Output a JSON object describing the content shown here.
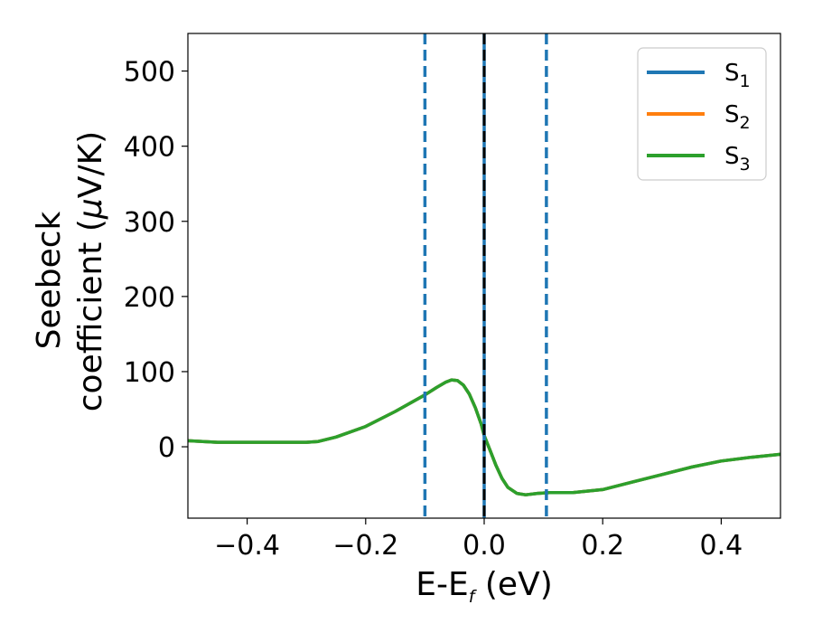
{
  "chart_data": {
    "type": "line",
    "title": "",
    "xlabel": {
      "main": "E-E",
      "sub": "f",
      "rest": " (eV)"
    },
    "ylabel": {
      "line1": "Seebeck",
      "line2_prefix": "coefficient  (",
      "mu": "μ",
      "line2_suffix": "V/K)"
    },
    "xlim": [
      -0.5,
      0.5
    ],
    "ylim": [
      -95,
      550
    ],
    "xticks": [
      -0.4,
      -0.2,
      0.0,
      0.2,
      0.4
    ],
    "xtick_labels": [
      "−0.4",
      "−0.2",
      "0.0",
      "0.2",
      "0.4"
    ],
    "yticks": [
      0,
      100,
      200,
      300,
      400,
      500
    ],
    "ytick_labels": [
      "0",
      "100",
      "200",
      "300",
      "400",
      "500"
    ],
    "grid": false,
    "legend_position": "top-right",
    "series": [
      {
        "name": "S",
        "sub": "1",
        "color": "#1f77b4",
        "x": [
          -0.5,
          -0.45,
          -0.4,
          -0.35,
          -0.3,
          -0.28,
          -0.25,
          -0.2,
          -0.15,
          -0.1,
          -0.08,
          -0.065,
          -0.055,
          -0.045,
          -0.035,
          -0.025,
          -0.015,
          -0.005,
          0.0,
          0.01,
          0.02,
          0.03,
          0.04,
          0.055,
          0.07,
          0.09,
          0.11,
          0.15,
          0.2,
          0.25,
          0.3,
          0.35,
          0.4,
          0.45,
          0.5
        ],
        "y": [
          8,
          6,
          6,
          6,
          6,
          7,
          13,
          27,
          47,
          69,
          79,
          86,
          89,
          88,
          82,
          70,
          52,
          30,
          15,
          -5,
          -25,
          -42,
          -54,
          -62,
          -64,
          -62,
          -61,
          -61,
          -57,
          -47,
          -37,
          -27,
          -19,
          -14,
          -10
        ]
      },
      {
        "name": "S",
        "sub": "2",
        "color": "#ff7f0e",
        "x": [
          -0.5,
          -0.45,
          -0.4,
          -0.35,
          -0.3,
          -0.28,
          -0.25,
          -0.2,
          -0.15,
          -0.1,
          -0.08,
          -0.065,
          -0.055,
          -0.045,
          -0.035,
          -0.025,
          -0.015,
          -0.005,
          0.0,
          0.01,
          0.02,
          0.03,
          0.04,
          0.055,
          0.07,
          0.09,
          0.11,
          0.15,
          0.2,
          0.25,
          0.3,
          0.35,
          0.4,
          0.45,
          0.5
        ],
        "y": [
          8,
          6,
          6,
          6,
          6,
          7,
          13,
          27,
          47,
          69,
          79,
          86,
          89,
          88,
          82,
          70,
          52,
          30,
          15,
          -5,
          -25,
          -42,
          -54,
          -62,
          -64,
          -62,
          -61,
          -61,
          -57,
          -47,
          -37,
          -27,
          -19,
          -14,
          -10
        ]
      },
      {
        "name": "S",
        "sub": "3",
        "color": "#2ca02c",
        "x": [
          -0.5,
          -0.45,
          -0.4,
          -0.35,
          -0.3,
          -0.28,
          -0.25,
          -0.2,
          -0.15,
          -0.1,
          -0.08,
          -0.065,
          -0.055,
          -0.045,
          -0.035,
          -0.025,
          -0.015,
          -0.005,
          0.0,
          0.01,
          0.02,
          0.03,
          0.04,
          0.055,
          0.07,
          0.09,
          0.11,
          0.15,
          0.2,
          0.25,
          0.3,
          0.35,
          0.4,
          0.45,
          0.5
        ],
        "y": [
          8,
          6,
          6,
          6,
          6,
          7,
          13,
          27,
          47,
          69,
          79,
          86,
          89,
          88,
          82,
          70,
          52,
          30,
          15,
          -5,
          -25,
          -42,
          -54,
          -62,
          -64,
          -62,
          -61,
          -61,
          -57,
          -47,
          -37,
          -27,
          -19,
          -14,
          -10
        ]
      }
    ],
    "vlines": [
      {
        "x": -0.1,
        "style": "dashed",
        "color": "#1f77b4"
      },
      {
        "x": 0.0,
        "style": "solid",
        "color": "#1f77b4"
      },
      {
        "x": 0.0,
        "style": "dashed",
        "color": "#000000"
      },
      {
        "x": 0.105,
        "style": "dashed",
        "color": "#1f77b4"
      }
    ]
  }
}
